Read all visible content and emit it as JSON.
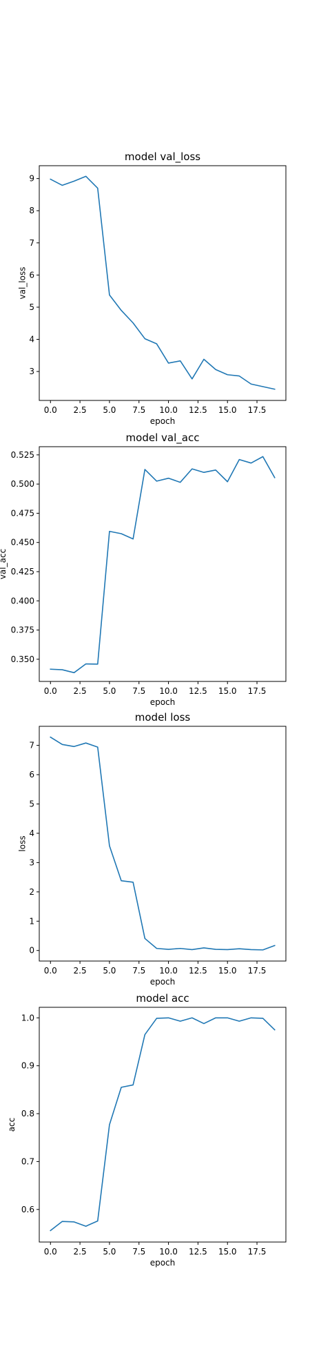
{
  "chart_data": [
    {
      "type": "line",
      "title": "model val_loss",
      "xlabel": "epoch",
      "ylabel": "val_loss",
      "xlim": [
        -0.95,
        19.95
      ],
      "ylim": [
        2.1,
        9.4
      ],
      "xticks": [
        0.0,
        2.5,
        5.0,
        7.5,
        10.0,
        12.5,
        15.0,
        17.5
      ],
      "xtick_labels": [
        "0.0",
        "2.5",
        "5.0",
        "7.5",
        "10.0",
        "12.5",
        "15.0",
        "17.5"
      ],
      "yticks": [
        3,
        4,
        5,
        6,
        7,
        8,
        9
      ],
      "ytick_labels": [
        "3",
        "4",
        "5",
        "6",
        "7",
        "8",
        "9"
      ],
      "grid": false,
      "series": [
        {
          "color": "#1f77b4",
          "x": [
            0,
            1,
            2,
            3,
            4,
            5,
            6,
            7,
            8,
            9,
            10,
            11,
            12,
            13,
            14,
            15,
            16,
            17,
            18,
            19
          ],
          "y": [
            8.98,
            8.79,
            8.92,
            9.07,
            8.7,
            5.38,
            4.9,
            4.51,
            4.02,
            3.86,
            3.26,
            3.33,
            2.77,
            3.38,
            3.06,
            2.9,
            2.86,
            2.61,
            2.53,
            2.45
          ]
        }
      ]
    },
    {
      "type": "line",
      "title": "model val_acc",
      "xlabel": "epoch",
      "ylabel": "val_acc",
      "xlim": [
        -0.95,
        19.95
      ],
      "ylim": [
        0.331,
        0.532
      ],
      "xticks": [
        0.0,
        2.5,
        5.0,
        7.5,
        10.0,
        12.5,
        15.0,
        17.5
      ],
      "xtick_labels": [
        "0.0",
        "2.5",
        "5.0",
        "7.5",
        "10.0",
        "12.5",
        "15.0",
        "17.5"
      ],
      "yticks": [
        0.35,
        0.375,
        0.4,
        0.425,
        0.45,
        0.475,
        0.5,
        0.525
      ],
      "ytick_labels": [
        "0.350",
        "0.375",
        "0.400",
        "0.425",
        "0.450",
        "0.475",
        "0.500",
        "0.525"
      ],
      "grid": false,
      "series": [
        {
          "color": "#1f77b4",
          "x": [
            0,
            1,
            2,
            3,
            4,
            5,
            6,
            7,
            8,
            9,
            10,
            11,
            12,
            13,
            14,
            15,
            16,
            17,
            18,
            19
          ],
          "y": [
            0.3415,
            0.341,
            0.3385,
            0.346,
            0.3458,
            0.4595,
            0.4575,
            0.453,
            0.5125,
            0.5025,
            0.505,
            0.5015,
            0.513,
            0.51,
            0.512,
            0.502,
            0.521,
            0.518,
            0.5235,
            0.5055
          ]
        }
      ]
    },
    {
      "type": "line",
      "title": "model loss",
      "xlabel": "epoch",
      "ylabel": "loss",
      "xlim": [
        -0.95,
        19.95
      ],
      "ylim": [
        -0.36,
        7.65
      ],
      "xticks": [
        0.0,
        2.5,
        5.0,
        7.5,
        10.0,
        12.5,
        15.0,
        17.5
      ],
      "xtick_labels": [
        "0.0",
        "2.5",
        "5.0",
        "7.5",
        "10.0",
        "12.5",
        "15.0",
        "17.5"
      ],
      "yticks": [
        0,
        1,
        2,
        3,
        4,
        5,
        6,
        7
      ],
      "ytick_labels": [
        "0",
        "1",
        "2",
        "3",
        "4",
        "5",
        "6",
        "7"
      ],
      "grid": false,
      "series": [
        {
          "color": "#1f77b4",
          "x": [
            0,
            1,
            2,
            3,
            4,
            5,
            6,
            7,
            8,
            9,
            10,
            11,
            12,
            13,
            14,
            15,
            16,
            17,
            18,
            19
          ],
          "y": [
            7.28,
            7.03,
            6.96,
            7.08,
            6.94,
            3.57,
            2.38,
            2.33,
            0.41,
            0.07,
            0.04,
            0.07,
            0.03,
            0.09,
            0.04,
            0.03,
            0.06,
            0.03,
            0.02,
            0.17
          ]
        }
      ]
    },
    {
      "type": "line",
      "title": "model acc",
      "xlabel": "epoch",
      "ylabel": "acc",
      "xlim": [
        -0.95,
        19.95
      ],
      "ylim": [
        0.532,
        1.022
      ],
      "xticks": [
        0.0,
        2.5,
        5.0,
        7.5,
        10.0,
        12.5,
        15.0,
        17.5
      ],
      "xtick_labels": [
        "0.0",
        "2.5",
        "5.0",
        "7.5",
        "10.0",
        "12.5",
        "15.0",
        "17.5"
      ],
      "yticks": [
        0.6,
        0.7,
        0.8,
        0.9,
        1.0
      ],
      "ytick_labels": [
        "0.6",
        "0.7",
        "0.8",
        "0.9",
        "1.0"
      ],
      "grid": false,
      "series": [
        {
          "color": "#1f77b4",
          "x": [
            0,
            1,
            2,
            3,
            4,
            5,
            6,
            7,
            8,
            9,
            10,
            11,
            12,
            13,
            14,
            15,
            16,
            17,
            18,
            19
          ],
          "y": [
            0.556,
            0.575,
            0.574,
            0.565,
            0.576,
            0.777,
            0.855,
            0.86,
            0.965,
            0.999,
            1.0,
            0.993,
            1.0,
            0.988,
            1.0,
            1.0,
            0.993,
            1.0,
            0.999,
            0.975
          ]
        }
      ]
    }
  ]
}
